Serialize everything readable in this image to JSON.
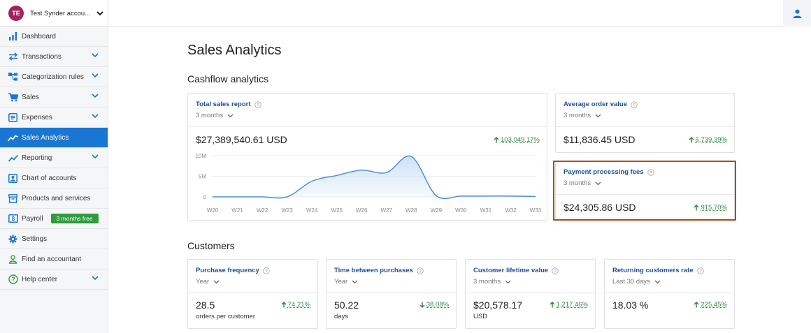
{
  "account": {
    "initials": "TE",
    "name": "Test Synder accou..."
  },
  "sidebar": {
    "items": [
      {
        "label": "Dashboard"
      },
      {
        "label": "Transactions"
      },
      {
        "label": "Categorization rules"
      },
      {
        "label": "Sales"
      },
      {
        "label": "Expenses"
      },
      {
        "label": "Sales Analytics"
      },
      {
        "label": "Reporting"
      },
      {
        "label": "Chart of accounts"
      },
      {
        "label": "Products and services"
      },
      {
        "label": "Payroll",
        "badge": "3 months free"
      },
      {
        "label": "Settings"
      },
      {
        "label": "Find an accountant"
      },
      {
        "label": "Help center"
      }
    ]
  },
  "main": {
    "title": "Sales Analytics",
    "cashflow_title": "Cashflow analytics",
    "customers_title": "Customers"
  },
  "cards": {
    "total_sales": {
      "title": "Total sales report",
      "period": "3 months",
      "value": "$27,389,540.61 USD",
      "delta": "103,049.17%"
    },
    "avg_order": {
      "title": "Average order value",
      "period": "3 months",
      "value": "$11,836.45 USD",
      "delta": "5,739.39%"
    },
    "payment_fees": {
      "title": "Payment processing fees",
      "period": "3 months",
      "value": "$24,305.86 USD",
      "delta": "915.70%"
    },
    "purchase_freq": {
      "title": "Purchase frequency",
      "period": "Year",
      "value": "28.5",
      "sub": "orders per customer",
      "delta": "74.21%"
    },
    "time_between": {
      "title": "Time between purchases",
      "period": "Year",
      "value": "50.22",
      "sub": "days",
      "delta": "38.08%"
    },
    "lifetime": {
      "title": "Customer lifetime value",
      "period": "3 months",
      "value": "$20,578.17",
      "sub": "USD",
      "delta": "1,217.46%"
    },
    "returning": {
      "title": "Returning customers rate",
      "period": "Last 30 days",
      "value": "18.03 %",
      "delta": "225.45%"
    }
  },
  "chart_data": {
    "type": "area",
    "categories": [
      "W20",
      "W21",
      "W22",
      "W23",
      "W24",
      "W25",
      "W26",
      "W27",
      "W28",
      "W29",
      "W30",
      "W31",
      "W32",
      "W33"
    ],
    "values": [
      0,
      0,
      0,
      0,
      3800000,
      5200000,
      6500000,
      5900000,
      9800000,
      300000,
      200000,
      200000,
      200000,
      100000
    ],
    "ytick_labels": [
      "10M",
      "5M",
      "0"
    ],
    "ytick_values": [
      10000000,
      5000000,
      0
    ],
    "ylim": [
      0,
      10000000
    ],
    "grid": true,
    "colors": {
      "line": "#4a90d9",
      "fill": "#cfe2f6"
    }
  },
  "colors": {
    "accent": "#1976d2",
    "positive": "#2e8b3e",
    "highlight": "#b04a1a",
    "badge": "#2e9b3e"
  }
}
